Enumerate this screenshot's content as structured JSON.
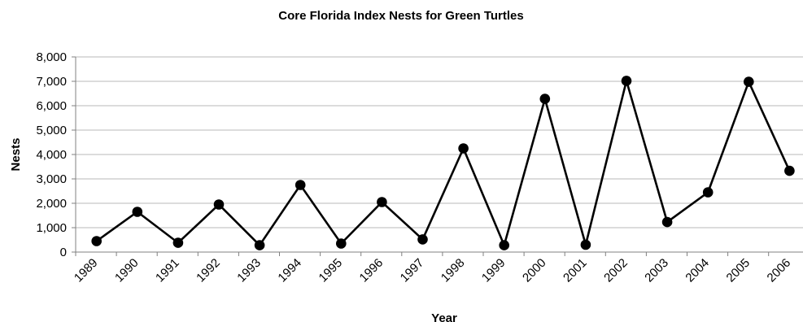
{
  "chart_data": {
    "type": "line",
    "title": "Core Florida Index Nests for Green Turtles",
    "xlabel": "Year",
    "ylabel": "Nests",
    "categories": [
      "1989",
      "1990",
      "1991",
      "1992",
      "1993",
      "1994",
      "1995",
      "1996",
      "1997",
      "1998",
      "1999",
      "2000",
      "2001",
      "2002",
      "2003",
      "2004",
      "2005",
      "2006"
    ],
    "series": [
      {
        "values": [
          450,
          1650,
          380,
          1950,
          280,
          2750,
          350,
          2050,
          520,
          4250,
          280,
          6280,
          300,
          7020,
          1230,
          2450,
          6980,
          3330
        ]
      }
    ],
    "ylim": [
      0,
      8000
    ],
    "yticks": [
      0,
      1000,
      2000,
      3000,
      4000,
      5000,
      6000,
      7000,
      8000
    ],
    "ytick_labels": [
      "0",
      "1,000",
      "2,000",
      "3,000",
      "4,000",
      "5,000",
      "6,000",
      "7,000",
      "8,000"
    ],
    "grid": true,
    "legend": "none",
    "line_color": "#000000",
    "grid_color": "#b9b9b9"
  }
}
